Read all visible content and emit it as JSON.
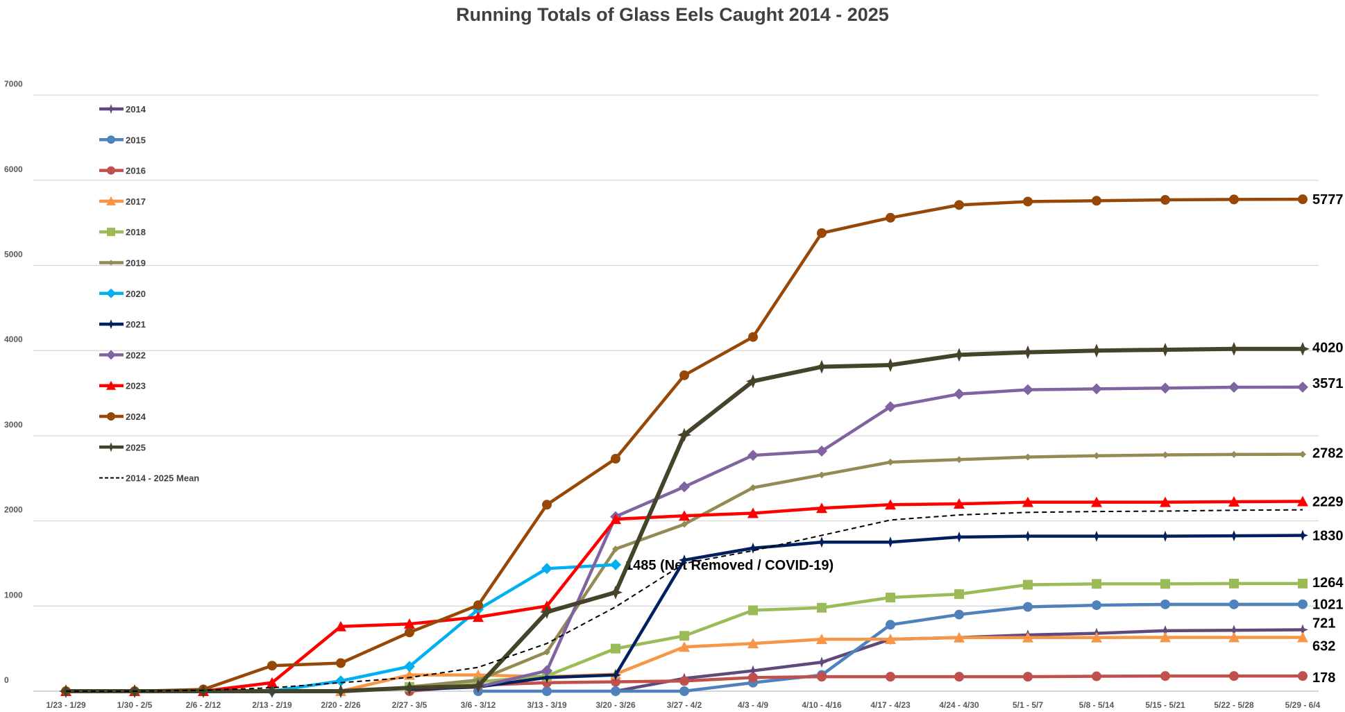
{
  "chart_data": {
    "type": "line",
    "title": "Running Totals of Glass Eels Caught 2014 - 2025",
    "xlabel": "",
    "ylabel": "",
    "ylim": [
      0,
      7000
    ],
    "yticks": [
      0,
      1000,
      2000,
      3000,
      4000,
      5000,
      6000,
      7000
    ],
    "grid": true,
    "legend": "left",
    "categories": [
      "1/23 - 1/29",
      "1/30 - 2/5",
      "2/6 - 2/12",
      "2/13 - 2/19",
      "2/20 - 2/26",
      "2/27 - 3/5",
      "3/6 - 3/12",
      "3/13 - 3/19",
      "3/20 - 3/26",
      "3/27 - 4/2",
      "4/3 - 4/9",
      "4/10 - 4/16",
      "4/17 - 4/23",
      "4/24 - 4/30",
      "5/1 - 5/7",
      "5/8 - 5/14",
      "5/15 - 5/21",
      "5/22 - 5/28",
      "5/29 - 6/4"
    ],
    "series": [
      {
        "name": "2014",
        "color": "#604a7b",
        "marker": "star",
        "end_label": "721",
        "values": [
          null,
          null,
          null,
          null,
          null,
          null,
          null,
          null,
          0,
          150,
          240,
          340,
          610,
          630,
          660,
          680,
          710,
          715,
          721
        ]
      },
      {
        "name": "2015",
        "color": "#4f81bd",
        "marker": "circle",
        "end_label": "1021",
        "values": [
          null,
          null,
          null,
          null,
          null,
          null,
          0,
          0,
          0,
          0,
          100,
          190,
          780,
          900,
          990,
          1010,
          1020,
          1020,
          1021
        ]
      },
      {
        "name": "2016",
        "color": "#c0504d",
        "marker": "circle",
        "end_label": "178",
        "values": [
          null,
          null,
          null,
          null,
          null,
          0,
          70,
          100,
          110,
          120,
          160,
          170,
          170,
          170,
          170,
          175,
          178,
          178,
          178
        ]
      },
      {
        "name": "2017",
        "color": "#f79646",
        "marker": "triangle",
        "end_label": "632",
        "values": [
          null,
          null,
          null,
          null,
          0,
          190,
          190,
          170,
          200,
          520,
          560,
          610,
          610,
          630,
          630,
          630,
          632,
          632,
          632
        ]
      },
      {
        "name": "2018",
        "color": "#9bbb59",
        "marker": "square",
        "end_label": "1264",
        "values": [
          null,
          null,
          null,
          null,
          null,
          50,
          110,
          180,
          500,
          650,
          950,
          980,
          1100,
          1140,
          1250,
          1260,
          1260,
          1264,
          1264
        ]
      },
      {
        "name": "2019",
        "color": "#948a54",
        "marker": "smalldiamond",
        "end_label": "2782",
        "values": [
          null,
          null,
          null,
          null,
          null,
          50,
          130,
          460,
          1670,
          1960,
          2390,
          2540,
          2690,
          2720,
          2750,
          2765,
          2775,
          2780,
          2782
        ]
      },
      {
        "name": "2020",
        "color": "#00b0f0",
        "marker": "diamond",
        "end_label": "1485 (Net Removed / COVID-19)",
        "values": [
          null,
          null,
          null,
          0,
          120,
          290,
          960,
          1440,
          1485,
          null,
          null,
          null,
          null,
          null,
          null,
          null,
          null,
          null,
          null
        ]
      },
      {
        "name": "2021",
        "color": "#002060",
        "marker": "star",
        "end_label": "1830",
        "values": [
          null,
          null,
          null,
          null,
          null,
          20,
          50,
          160,
          190,
          1540,
          1680,
          1750,
          1750,
          1810,
          1820,
          1820,
          1820,
          1825,
          1830
        ]
      },
      {
        "name": "2022",
        "color": "#8064a2",
        "marker": "diamond",
        "end_label": "3571",
        "values": [
          null,
          null,
          null,
          null,
          null,
          null,
          50,
          240,
          2050,
          2400,
          2770,
          2820,
          3340,
          3490,
          3540,
          3550,
          3560,
          3570,
          3571
        ]
      },
      {
        "name": "2023",
        "color": "#ff0000",
        "marker": "triangle",
        "end_label": "2229",
        "values": [
          0,
          0,
          0,
          100,
          760,
          790,
          870,
          1000,
          2020,
          2060,
          2090,
          2150,
          2190,
          2200,
          2220,
          2220,
          2220,
          2225,
          2229
        ]
      },
      {
        "name": "2024",
        "color": "#974706",
        "marker": "circle",
        "end_label": "5777",
        "values": [
          0,
          0,
          20,
          300,
          330,
          690,
          1010,
          2190,
          2730,
          3710,
          4160,
          5380,
          5560,
          5710,
          5750,
          5760,
          5770,
          5775,
          5777
        ]
      },
      {
        "name": "2025",
        "color": "#45432a",
        "marker": "star",
        "end_label": "4020",
        "values": [
          0,
          0,
          0,
          0,
          0,
          40,
          60,
          930,
          1160,
          3010,
          3640,
          3810,
          3830,
          3950,
          3980,
          4000,
          4010,
          4020,
          4020
        ]
      },
      {
        "name": "2014 - 2025 Mean",
        "color": "#000000",
        "marker": "none",
        "dashed": true,
        "end_label": "",
        "values": [
          0,
          0,
          10,
          40,
          100,
          160,
          280,
          560,
          990,
          1500,
          1650,
          1830,
          2010,
          2070,
          2100,
          2110,
          2115,
          2125,
          2130
        ]
      }
    ]
  }
}
